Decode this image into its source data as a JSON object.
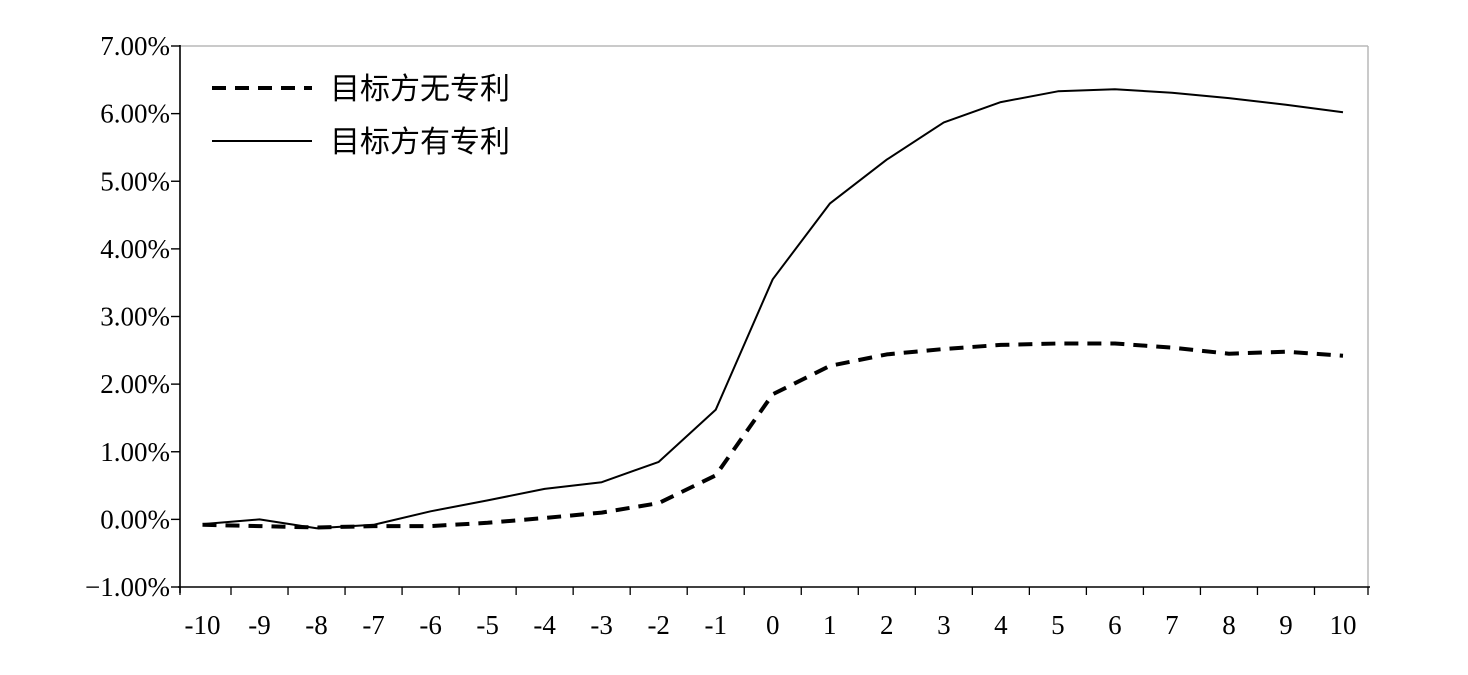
{
  "chart_data": {
    "type": "line",
    "title": "",
    "xlabel": "",
    "ylabel": "",
    "x": [
      -10,
      -9,
      -8,
      -7,
      -6,
      -5,
      -4,
      -3,
      -2,
      -1,
      0,
      1,
      2,
      3,
      4,
      5,
      6,
      7,
      8,
      9,
      10
    ],
    "x_tick_labels": [
      "-10",
      "-9",
      "-8",
      "-7",
      "-6",
      "-5",
      "-4",
      "-3",
      "-2",
      "-1",
      "0",
      "1",
      "2",
      "3",
      "4",
      "5",
      "6",
      "7",
      "8",
      "9",
      "10"
    ],
    "ylim": [
      -1.0,
      7.0
    ],
    "y_ticks": [
      -1.0,
      0.0,
      1.0,
      2.0,
      3.0,
      4.0,
      5.0,
      6.0,
      7.0
    ],
    "y_tick_labels": [
      "−1.00%",
      "0.00%",
      "1.00%",
      "2.00%",
      "3.00%",
      "4.00%",
      "5.00%",
      "6.00%",
      "7.00%"
    ],
    "grid": false,
    "legend_position": "top-left",
    "series": [
      {
        "name": "目标方无专利",
        "style": "dashed",
        "color": "#000000",
        "values": [
          -0.08,
          -0.1,
          -0.12,
          -0.1,
          -0.1,
          -0.05,
          0.02,
          0.1,
          0.24,
          0.65,
          1.85,
          2.27,
          2.44,
          2.52,
          2.58,
          2.6,
          2.6,
          2.54,
          2.45,
          2.48,
          2.42
        ]
      },
      {
        "name": "目标方有专利",
        "style": "solid",
        "color": "#000000",
        "values": [
          -0.07,
          0.0,
          -0.13,
          -0.08,
          0.12,
          0.28,
          0.45,
          0.55,
          0.85,
          1.62,
          3.55,
          4.67,
          5.32,
          5.87,
          6.17,
          6.33,
          6.36,
          6.31,
          6.23,
          6.13,
          6.02
        ]
      }
    ]
  }
}
